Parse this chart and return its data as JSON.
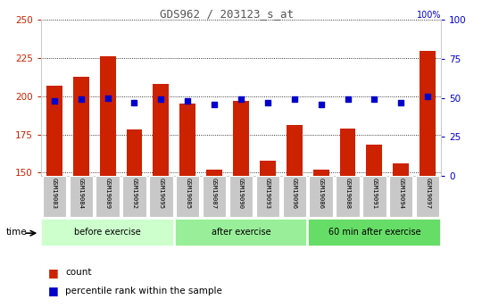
{
  "title": "GDS962 / 203123_s_at",
  "samples": [
    "GSM19083",
    "GSM19084",
    "GSM19089",
    "GSM19092",
    "GSM19095",
    "GSM19085",
    "GSM19087",
    "GSM19090",
    "GSM19093",
    "GSM19096",
    "GSM19086",
    "GSM19088",
    "GSM19091",
    "GSM19094",
    "GSM19097"
  ],
  "counts": [
    207,
    213,
    226,
    178,
    208,
    195,
    152,
    197,
    158,
    181,
    152,
    179,
    168,
    156,
    230
  ],
  "percentile_ranks": [
    48,
    49,
    50,
    47,
    49,
    48,
    46,
    49,
    47,
    49,
    46,
    49,
    49,
    47,
    51
  ],
  "groups": [
    {
      "label": "before exercise",
      "start": 0,
      "end": 5
    },
    {
      "label": "after exercise",
      "start": 5,
      "end": 10
    },
    {
      "label": "60 min after exercise",
      "start": 10,
      "end": 15
    }
  ],
  "group_colors": [
    "#ccffcc",
    "#99ee99",
    "#66dd66"
  ],
  "ylim_left": [
    148,
    250
  ],
  "ylim_right": [
    0,
    100
  ],
  "yticks_left": [
    150,
    175,
    200,
    225,
    250
  ],
  "yticks_right": [
    0,
    25,
    50,
    75,
    100
  ],
  "bar_color": "#cc2200",
  "dot_color": "#0000cc",
  "background_color": "#ffffff",
  "grid_color": "#000000",
  "tick_label_bg": "#c8c8c8",
  "ylabel_left_color": "#cc2200",
  "ylabel_right_color": "#0000cc",
  "legend_items": [
    "count",
    "percentile rank within the sample"
  ],
  "legend_colors": [
    "#cc2200",
    "#0000cc"
  ],
  "title_color": "#555555"
}
